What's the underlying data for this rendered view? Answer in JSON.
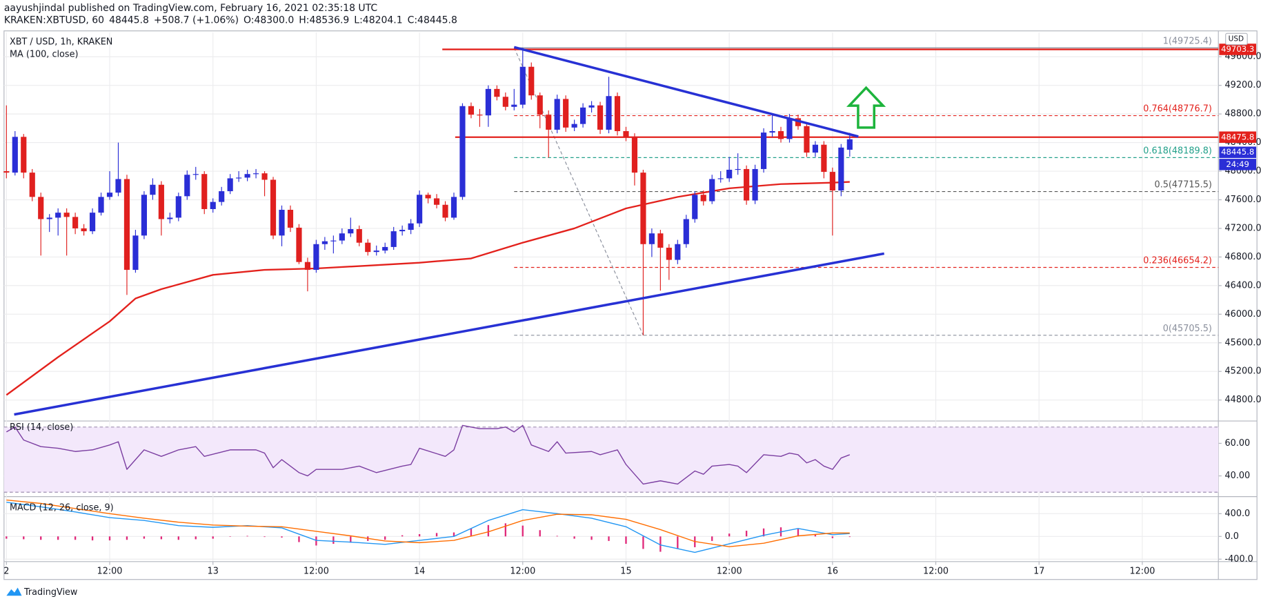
{
  "header": {
    "line1": "aayushjindal published on TradingView.com, February 16, 2021 02:35:18 UTC",
    "symbol": "KRAKEN:XBTUSD, 60",
    "price": "48445.8",
    "change": "+508.7 (+1.06%)",
    "o": "O:48300.0",
    "h": "H:48536.9",
    "l": "L:48204.1",
    "c": "C:48445.8"
  },
  "footer": "TradingView",
  "chart_data": [
    {
      "type": "candlestick",
      "title": "XBT / USD, 1h, KRAKEN",
      "currency": "USD",
      "xlim": [
        -0.28,
        140.84
      ],
      "ylim": [
        44518,
        49939
      ],
      "yticks": [
        {
          "value": 44800,
          "label": "44800.0"
        },
        {
          "value": 45200,
          "label": "45200.0"
        },
        {
          "value": 45600,
          "label": "45600.0"
        },
        {
          "value": 46000,
          "label": "46000.0"
        },
        {
          "value": 46400,
          "label": "46400.0"
        },
        {
          "value": 46800,
          "label": "46800.0"
        },
        {
          "value": 47200,
          "label": "47200.0"
        },
        {
          "value": 47600,
          "label": "47600.0"
        },
        {
          "value": 48000,
          "label": "48000.0"
        },
        {
          "value": 48400,
          "label": "48400.0"
        },
        {
          "value": 48800,
          "label": "48800.0"
        },
        {
          "value": 49200,
          "label": "49200.0"
        },
        {
          "value": 49600,
          "label": "49600.0"
        }
      ],
      "up_color": "#2a2ed6",
      "down_color": "#e0201f",
      "open": [
        48000,
        47980,
        48480,
        47980,
        47640,
        47330,
        47350,
        47420,
        47360,
        47200,
        47160,
        47420,
        47640,
        47700,
        47890,
        46620,
        47100,
        47670,
        47810,
        47330,
        47350,
        47650,
        47950,
        47960,
        47470,
        47570,
        47720,
        47900,
        47910,
        47960,
        47970,
        47880,
        47100,
        47460,
        47210,
        46730,
        46620,
        46980,
        47020,
        47030,
        47130,
        47190,
        47000,
        46870,
        46890,
        46940,
        47160,
        47180,
        47270,
        47670,
        47620,
        47530,
        47350,
        47640,
        48910,
        48790,
        48780,
        49150,
        49040,
        48900,
        48930,
        49460,
        49060,
        48790,
        48580,
        49010,
        48610,
        48660,
        48890,
        48920,
        48580,
        49050,
        48560,
        48480,
        47980,
        46980,
        47130,
        46930,
        46760,
        46980,
        47330,
        47670,
        47580,
        47890,
        47900,
        48020,
        48030,
        47590,
        48030,
        48540,
        48560,
        48450,
        48740,
        48630,
        48260,
        48370,
        47990,
        47730,
        48300
      ],
      "high": [
        48920,
        48560,
        48520,
        48030,
        47700,
        47400,
        47480,
        47480,
        47420,
        47260,
        47480,
        47700,
        48000,
        48400,
        47950,
        47180,
        47720,
        47900,
        47860,
        47420,
        47700,
        48010,
        48060,
        48000,
        47620,
        47780,
        47960,
        48000,
        48020,
        48030,
        48000,
        47920,
        47520,
        47520,
        47260,
        46790,
        47040,
        47080,
        47100,
        47200,
        47350,
        47240,
        47050,
        46960,
        47000,
        47220,
        47240,
        47330,
        47730,
        47700,
        47680,
        47580,
        47700,
        48950,
        48960,
        48870,
        49200,
        49200,
        49100,
        49150,
        49725,
        49520,
        49100,
        48850,
        49070,
        49060,
        48720,
        48950,
        48980,
        48970,
        49320,
        49100,
        48620,
        48530,
        48020,
        47200,
        47180,
        46980,
        47040,
        47390,
        47720,
        47730,
        47950,
        48000,
        48200,
        48250,
        48080,
        48090,
        48600,
        48800,
        48620,
        48800,
        48790,
        48680,
        48420,
        48420,
        48050,
        48380,
        48536.9
      ],
      "low": [
        47900,
        47940,
        47900,
        47580,
        46820,
        47150,
        47100,
        46820,
        47120,
        47100,
        47120,
        47380,
        47600,
        47650,
        46270,
        46580,
        47050,
        47600,
        47100,
        47270,
        47300,
        47600,
        47880,
        47400,
        47420,
        47520,
        47680,
        47850,
        47860,
        47900,
        47650,
        47050,
        46950,
        47150,
        46700,
        46320,
        46580,
        46900,
        46850,
        46980,
        47080,
        46950,
        46820,
        46820,
        46850,
        46900,
        47100,
        47120,
        47220,
        47550,
        47480,
        47300,
        47320,
        47600,
        48740,
        48620,
        48620,
        48990,
        48850,
        48850,
        48880,
        49000,
        48600,
        48190,
        48530,
        48550,
        48560,
        48610,
        48820,
        48520,
        48530,
        48500,
        48420,
        47800,
        45705,
        46800,
        46330,
        46480,
        46700,
        46930,
        47280,
        47520,
        47540,
        47840,
        47850,
        47950,
        47530,
        47540,
        47980,
        48480,
        48400,
        48400,
        48580,
        48200,
        48200,
        47900,
        47100,
        47650,
        48204.1
      ],
      "close": [
        47980,
        48480,
        47980,
        47640,
        47330,
        47350,
        47420,
        47360,
        47200,
        47160,
        47420,
        47640,
        47700,
        47890,
        46620,
        47100,
        47670,
        47810,
        47330,
        47350,
        47650,
        47950,
        47960,
        47470,
        47570,
        47720,
        47900,
        47910,
        47960,
        47970,
        47880,
        47100,
        47460,
        47210,
        46730,
        46620,
        46980,
        47020,
        47030,
        47130,
        47190,
        47000,
        46870,
        46890,
        46940,
        47160,
        47180,
        47270,
        47670,
        47620,
        47530,
        47350,
        47640,
        48910,
        48790,
        48780,
        49150,
        49040,
        48900,
        48930,
        49460,
        49060,
        48790,
        48580,
        49010,
        48610,
        48660,
        48890,
        48920,
        48580,
        49050,
        48560,
        48480,
        47980,
        46980,
        47130,
        46930,
        46760,
        46980,
        47330,
        47670,
        47580,
        47890,
        47900,
        48020,
        48030,
        47590,
        48030,
        48540,
        48560,
        48450,
        48740,
        48630,
        48260,
        48370,
        47990,
        47730,
        48330,
        48445.8
      ],
      "ma": {
        "name": "MA (100, close)",
        "color": "#e3211c",
        "x": [
          0,
          6,
          12,
          15,
          18,
          24,
          30,
          36,
          42,
          48,
          54,
          60,
          66,
          72,
          78,
          84,
          90,
          96,
          98
        ],
        "values": [
          44870,
          45400,
          45900,
          46220,
          46350,
          46550,
          46620,
          46640,
          46680,
          46720,
          46780,
          47000,
          47200,
          47480,
          47640,
          47760,
          47820,
          47840,
          47850
        ]
      },
      "levels": [
        {
          "value": 49703.3,
          "color": "#e3211c"
        },
        {
          "value": 48475.8,
          "color": "#e3211c"
        }
      ],
      "countdown": "24:49",
      "fib_x": [
        59,
        74
      ],
      "fib": [
        {
          "value": 49725.4,
          "label": "1(49725.4)",
          "color": "#8a8f9c"
        },
        {
          "value": 48776.7,
          "label": "0.764(48776.7)",
          "color": "#e3211c"
        },
        {
          "value": 48189.8,
          "label": "0.618(48189.8)",
          "color": "#22a08a"
        },
        {
          "value": 47715.5,
          "label": "0.5(47715.5)",
          "color": "#555555"
        },
        {
          "value": 46654.2,
          "label": "0.236(46654.2)",
          "color": "#e3211c"
        },
        {
          "value": 45705.5,
          "label": "0(45705.5)",
          "color": "#8a8f9c"
        }
      ],
      "trendlines": [
        {
          "x": [
            59,
            99
          ],
          "y": [
            49734,
            48484
          ],
          "color": "#2731d4"
        },
        {
          "x": [
            0.9,
            102
          ],
          "y": [
            44598,
            46848
          ],
          "color": "#2731d4"
        }
      ]
    },
    {
      "type": "line",
      "title": "RSI (14, close)",
      "xlim": [
        -0.28,
        140.84
      ],
      "ylim": [
        27.8,
        73.2
      ],
      "yticks": [
        {
          "value": 40,
          "label": "40.00"
        },
        {
          "value": 60,
          "label": "60.00"
        }
      ],
      "band": [
        30,
        70
      ],
      "color": "#7b3ea1",
      "x": [
        0,
        1,
        2,
        4,
        6,
        8,
        10,
        12,
        13,
        14,
        16,
        18,
        20,
        22,
        23,
        26,
        29,
        30,
        31,
        32,
        34,
        35,
        36,
        39,
        41,
        43,
        46,
        47,
        48,
        51,
        52,
        53,
        55,
        57,
        58,
        59,
        60,
        61,
        63,
        64,
        65,
        68,
        69,
        71,
        72,
        74,
        76,
        78,
        80,
        81,
        82,
        84,
        85,
        86,
        88,
        90,
        91,
        92,
        93,
        94,
        95,
        96,
        97,
        98
      ],
      "values": [
        67,
        70,
        62,
        58,
        57,
        55,
        56,
        59,
        61,
        44,
        56,
        52,
        56,
        58,
        52,
        56,
        56,
        54,
        45,
        50,
        42,
        40,
        44,
        44,
        46,
        42,
        46,
        47,
        57,
        52,
        56,
        71,
        69,
        69,
        70,
        67,
        71,
        59,
        55,
        61,
        54,
        55,
        53,
        56,
        47,
        35,
        37,
        35,
        43,
        41,
        46,
        47,
        46,
        42,
        53,
        52,
        54,
        53,
        48,
        50,
        46,
        44,
        51,
        53
      ]
    },
    {
      "type": "macd",
      "title": "MACD (12, 26, close, 9)",
      "xlim": [
        -0.28,
        140.84
      ],
      "ylim": [
        -429,
        686
      ],
      "yticks": [
        {
          "value": 400,
          "label": "400.0"
        },
        {
          "value": 0,
          "label": "0.0"
        },
        {
          "value": -400,
          "label": "-400.0"
        }
      ],
      "xticks": [
        {
          "value": 0,
          "label": "2"
        },
        {
          "value": 12,
          "label": "12:00"
        },
        {
          "value": 24,
          "label": "13"
        },
        {
          "value": 36,
          "label": "12:00"
        },
        {
          "value": 48,
          "label": "14"
        },
        {
          "value": 60,
          "label": "12:00"
        },
        {
          "value": 72,
          "label": "15"
        },
        {
          "value": 84,
          "label": "12:00"
        },
        {
          "value": 96,
          "label": "16"
        },
        {
          "value": 108,
          "label": "12:00"
        },
        {
          "value": 120,
          "label": "17"
        },
        {
          "value": 132,
          "label": "12:00"
        }
      ],
      "lines": [
        {
          "color": "#2196f3",
          "x": [
            0,
            4,
            8,
            12,
            16,
            20,
            24,
            28,
            32,
            36,
            40,
            44,
            48,
            52,
            56,
            60,
            64,
            68,
            72,
            76,
            80,
            84,
            88,
            92,
            96,
            98
          ],
          "values": [
            600,
            520,
            430,
            330,
            280,
            190,
            160,
            190,
            150,
            -70,
            -100,
            -140,
            -70,
            0,
            280,
            470,
            400,
            320,
            170,
            -150,
            -280,
            -130,
            20,
            140,
            30,
            50
          ]
        },
        {
          "color": "#ff6d00",
          "x": [
            0,
            4,
            8,
            12,
            16,
            20,
            24,
            28,
            32,
            36,
            40,
            44,
            48,
            52,
            56,
            60,
            64,
            68,
            72,
            76,
            80,
            84,
            88,
            92,
            96,
            98
          ],
          "values": [
            640,
            580,
            490,
            400,
            320,
            250,
            200,
            180,
            170,
            90,
            10,
            -80,
            -110,
            -70,
            80,
            280,
            390,
            380,
            300,
            120,
            -90,
            -180,
            -120,
            10,
            60,
            60
          ]
        }
      ],
      "histogram": {
        "color": "#e0297a",
        "x": [
          0,
          2,
          4,
          6,
          8,
          10,
          12,
          14,
          16,
          18,
          20,
          22,
          24,
          26,
          28,
          30,
          32,
          34,
          36,
          38,
          40,
          42,
          44,
          46,
          48,
          50,
          52,
          54,
          56,
          58,
          60,
          62,
          64,
          66,
          68,
          70,
          72,
          74,
          76,
          78,
          80,
          82,
          84,
          86,
          88,
          90,
          92,
          94,
          96,
          98
        ],
        "values": [
          -40,
          -50,
          -60,
          -60,
          -60,
          -70,
          -70,
          -60,
          -40,
          -50,
          -60,
          -50,
          -40,
          0,
          10,
          -10,
          -20,
          -100,
          -160,
          -130,
          -110,
          -80,
          -60,
          20,
          40,
          60,
          70,
          140,
          200,
          230,
          190,
          110,
          10,
          -40,
          -60,
          -80,
          -130,
          -220,
          -270,
          -220,
          -190,
          -80,
          50,
          100,
          140,
          160,
          130,
          40,
          -30,
          -10
        ]
      }
    }
  ]
}
